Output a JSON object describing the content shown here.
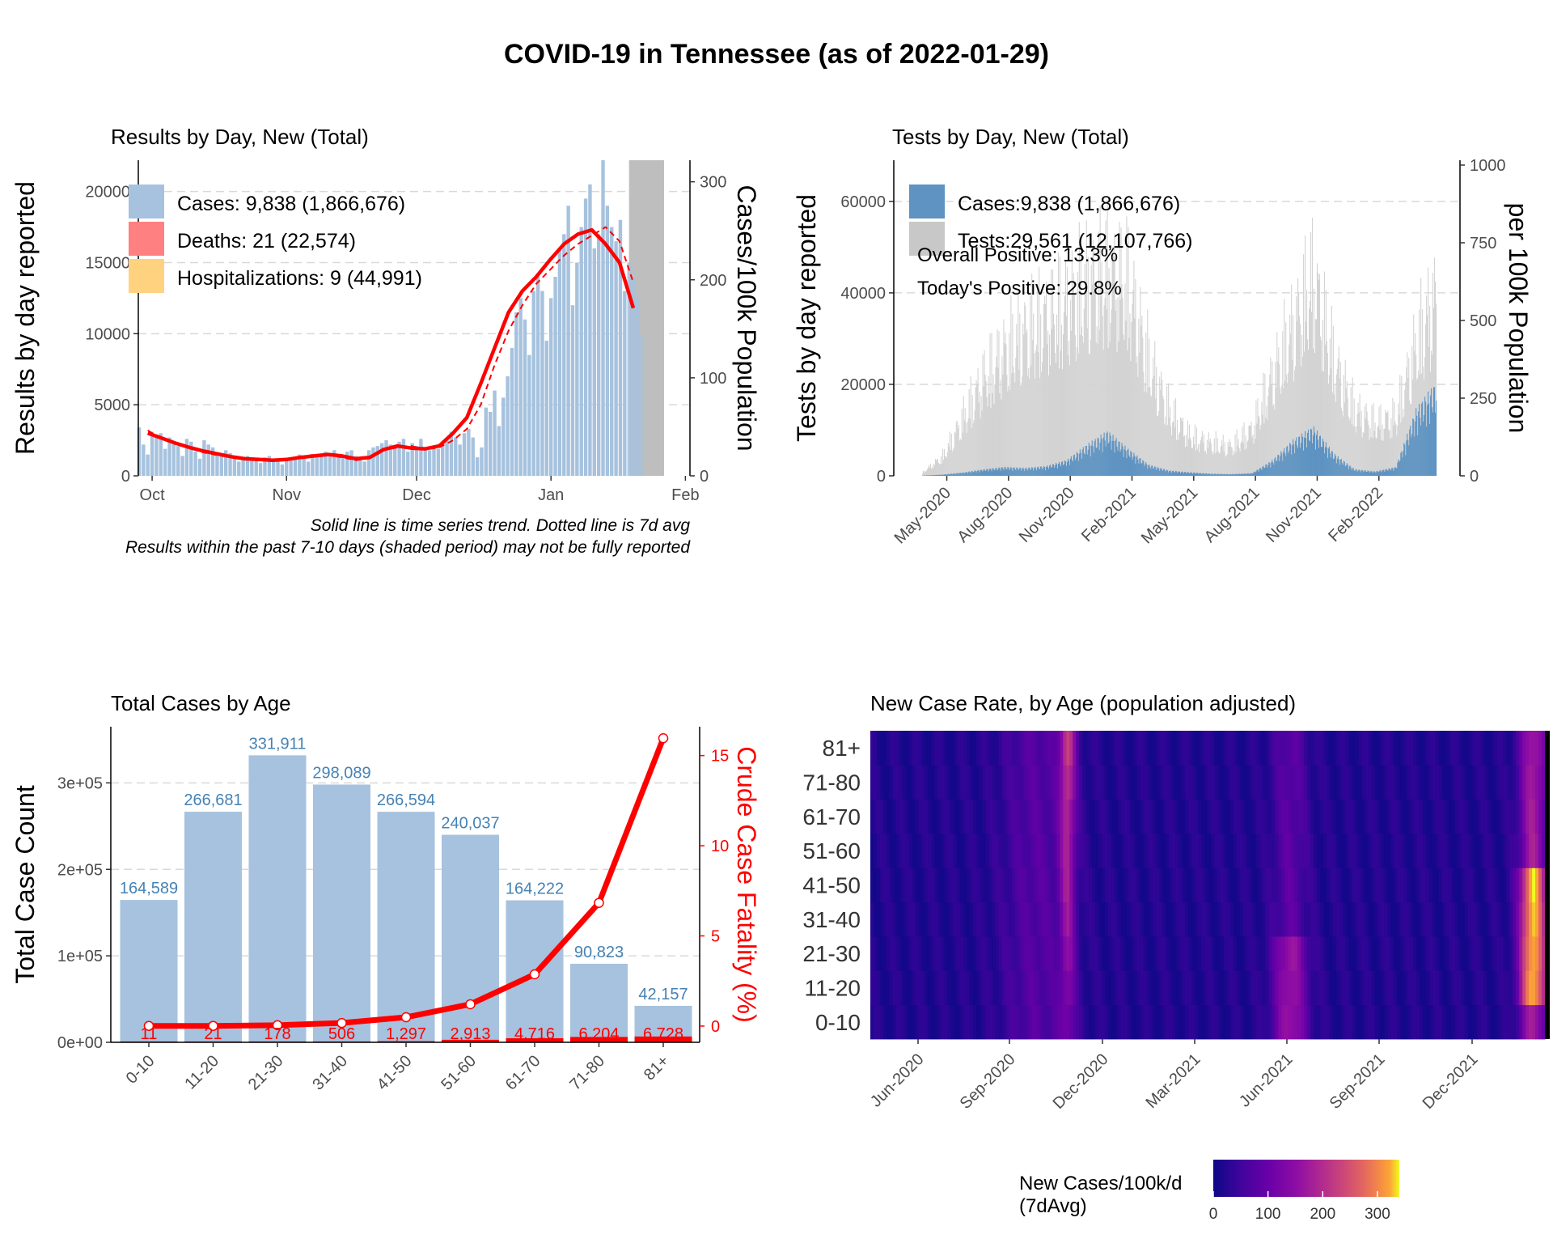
{
  "title": "COVID-19 in Tennessee (as of 2022-01-29)",
  "colors": {
    "cases": "#a6c2de",
    "cases_dark": "#5e93c2",
    "tests": "#d3d3d3",
    "deaths": "#ff0000",
    "deaths_legend": "#ff8080",
    "hosp_legend": "#ffd27f",
    "shade": "#bebebe",
    "grid": "#d9d9d9",
    "label_blue": "#4682b4"
  },
  "chart_data": [
    {
      "type": "bar",
      "title": "Results by Day, New (Total)",
      "ylabel": "Results by day reported",
      "y2label": "Cases/100k Population",
      "xticks": [
        "Oct",
        "Nov",
        "Dec",
        "Jan",
        "Feb"
      ],
      "yticks": [
        "0",
        "5000",
        "10000",
        "15000",
        "20000"
      ],
      "y2ticks": [
        "0",
        "100",
        "200",
        "300"
      ],
      "ylim": [
        0,
        22200
      ],
      "legend": [
        {
          "label": "Cases: 9,838 (1,866,676)",
          "color": "#a6c2de"
        },
        {
          "label": "Deaths: 21 (22,574)",
          "color": "#ff8080"
        },
        {
          "label": "Hospitalizations: 9 (44,991)",
          "color": "#ffd27f"
        }
      ],
      "bars_start": "2021-09-28",
      "values": [
        3400,
        2200,
        1500,
        3100,
        2900,
        3000,
        1900,
        2700,
        2300,
        2100,
        1400,
        2600,
        2400,
        1700,
        1200,
        2500,
        2200,
        2000,
        1500,
        1400,
        1800,
        1600,
        1300,
        1000,
        1200,
        1400,
        1300,
        1100,
        900,
        1300,
        1400,
        1200,
        1100,
        800,
        1100,
        1300,
        1200,
        1500,
        1300,
        1000,
        1300,
        1500,
        1400,
        1700,
        1600,
        1800,
        1500,
        1300,
        1700,
        1800,
        1400,
        1200,
        1000,
        1800,
        2000,
        2100,
        2300,
        2500,
        2200,
        2100,
        2400,
        2600,
        1700,
        2300,
        2100,
        2600,
        2000,
        1800,
        2100,
        1900,
        2200,
        2500,
        3100,
        2700,
        2200,
        3000,
        3300,
        2700,
        1300,
        2000,
        4800,
        4500,
        6000,
        3500,
        5500,
        7000,
        9000,
        11500,
        12500,
        11000,
        8500,
        13000,
        14000,
        13000,
        9500,
        12500,
        14000,
        16000,
        17000,
        19000,
        12000,
        15000,
        17500,
        19500,
        20500,
        16000,
        17000,
        22200,
        19000,
        17500,
        16500,
        18000,
        13000,
        15000,
        14000,
        12500,
        9838
      ],
      "trend_start": "2021-09-30",
      "trend": [
        3000,
        2650,
        2300,
        2000,
        1750,
        1550,
        1350,
        1200,
        1150,
        1100,
        1150,
        1300,
        1400,
        1500,
        1400,
        1200,
        1300,
        1850,
        2100,
        1950,
        1900,
        2100,
        3000,
        4100,
        6500,
        9000,
        11500,
        13000,
        14000,
        15200,
        16300,
        17000,
        17300,
        16300,
        15000,
        11800
      ],
      "avg7": [
        3200,
        2600,
        2300,
        2000,
        1650,
        1450,
        1300,
        1150,
        1100,
        1050,
        1200,
        1300,
        1500,
        1450,
        1300,
        1100,
        1250,
        1800,
        2000,
        2100,
        1850,
        2000,
        2500,
        3300,
        5000,
        7800,
        10200,
        12000,
        13500,
        14500,
        15500,
        16300,
        16900,
        17500,
        16500,
        13600
      ],
      "shaded_from": "2022-01-19",
      "notes": [
        "Solid line is time series trend. Dotted line is 7d avg",
        "Results within the past 7-10 days (shaded period) may not be fully reported"
      ]
    },
    {
      "type": "bar",
      "title": "Tests by Day, New (Total)",
      "ylabel": "Tests by day reported",
      "y2label": "per 100k Population",
      "xticks": [
        "May-2020",
        "Aug-2020",
        "Nov-2020",
        "Feb-2021",
        "May-2021",
        "Aug-2021",
        "Nov-2021",
        "Feb-2022"
      ],
      "yticks": [
        "0",
        "20000",
        "40000",
        "60000"
      ],
      "y2ticks": [
        "0",
        "250",
        "500",
        "750",
        "1000"
      ],
      "ylim": [
        0,
        69000
      ],
      "legend": [
        {
          "label": "Cases:9,838 (1,866,676)",
          "color": "#5e93c2"
        },
        {
          "label": "Tests:29,561 (12,107,766)",
          "color": "#c8c8c8"
        }
      ],
      "annotations": [
        "Overall Positive: 13.3%",
        "Today's Positive: 29.8%"
      ],
      "tests_envelope": {
        "month_index": [
          0,
          1,
          2,
          3,
          4,
          5,
          6,
          7,
          8,
          9,
          10,
          11,
          12,
          13,
          14,
          15,
          16,
          17,
          18,
          19,
          20,
          21,
          22,
          23,
          24,
          25
        ],
        "values": [
          1000,
          6000,
          18000,
          30000,
          38000,
          44000,
          48000,
          52000,
          58000,
          62000,
          58000,
          35000,
          20000,
          12000,
          10000,
          9000,
          14000,
          30000,
          45000,
          60000,
          35000,
          20000,
          16000,
          18000,
          40000,
          55000
        ]
      },
      "cases_envelope": {
        "month_index": [
          0,
          1,
          2,
          3,
          4,
          5,
          6,
          7,
          8,
          9,
          10,
          11,
          12,
          13,
          14,
          15,
          16,
          17,
          18,
          19,
          20,
          21,
          22,
          23,
          24,
          25
        ],
        "values": [
          50,
          300,
          800,
          1500,
          2000,
          1800,
          2200,
          3500,
          7000,
          10000,
          6000,
          2500,
          1200,
          800,
          500,
          400,
          600,
          3500,
          8000,
          11000,
          5000,
          1500,
          1000,
          2000,
          15000,
          21000
        ]
      }
    },
    {
      "type": "bar",
      "title": "Total Cases by Age",
      "ylabel": "Total Case Count",
      "y2label": "Crude Case Fatality (%)",
      "categories": [
        "0-10",
        "11-20",
        "21-30",
        "31-40",
        "41-50",
        "51-60",
        "61-70",
        "71-80",
        "81+"
      ],
      "values": [
        164589,
        266681,
        331911,
        298089,
        266594,
        240037,
        164222,
        90823,
        42157
      ],
      "value_labels": [
        "164,589",
        "266,681",
        "331,911",
        "298,089",
        "266,594",
        "240,037",
        "164,222",
        "90,823",
        "42,157"
      ],
      "deaths": [
        11,
        21,
        178,
        506,
        1297,
        2913,
        4716,
        6204,
        6728
      ],
      "death_labels": [
        "11",
        "21",
        "178",
        "506",
        "1,297",
        "2,913",
        "4,716",
        "6,204",
        "6,728"
      ],
      "fatality_pct": [
        0.01,
        0.01,
        0.05,
        0.17,
        0.49,
        1.21,
        2.87,
        6.83,
        15.96
      ],
      "yticks": [
        "0e+00",
        "1e+05",
        "2e+05",
        "3e+05"
      ],
      "y2ticks": [
        "0",
        "5",
        "10",
        "15"
      ],
      "ylim": [
        0,
        365000
      ],
      "y2lim": [
        -0.9,
        16.6
      ]
    },
    {
      "type": "heatmap",
      "title": "New Case Rate, by Age (population adjusted)",
      "rows": [
        "0-10",
        "11-20",
        "21-30",
        "31-40",
        "41-50",
        "51-60",
        "61-70",
        "71-80",
        "81+"
      ],
      "xticks": [
        "Jun-2020",
        "Sep-2020",
        "Dec-2020",
        "Mar-2021",
        "Jun-2021",
        "Sep-2021",
        "Dec-2021"
      ],
      "legend_title": [
        "New Cases/100k/d",
        "(7dAvg)"
      ],
      "legend_ticks": [
        "0",
        "100",
        "200",
        "300"
      ],
      "scale_max": 340
    }
  ]
}
